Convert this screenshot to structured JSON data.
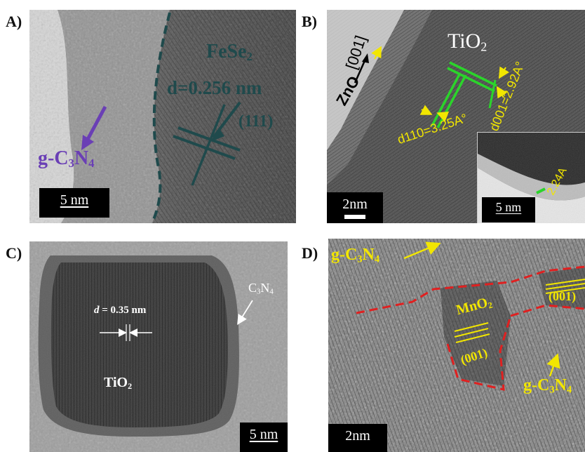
{
  "panels": {
    "a": {
      "label": "A)",
      "material": "FeSe",
      "material_sub": "2",
      "d_spacing": "d=0.256 nm",
      "plane": "(111)",
      "gcn_prefix": "g-C",
      "gcn_sub1": "3",
      "gcn_mid": "N",
      "gcn_sub2": "4",
      "scale": "5 nm"
    },
    "b": {
      "label": "B)",
      "direction": "[001]",
      "zno": "ZnO",
      "tio2": "TiO",
      "tio2_sub": "2",
      "d001": "d001=2.92A°",
      "d110": "d110=3.25A°",
      "inset_d": "2.24A",
      "scale_main": "2nm",
      "scale_inset": "5 nm"
    },
    "c": {
      "label": "C)",
      "c3n4_prefix": "C",
      "c3n4_sub1": "3",
      "c3n4_mid": "N",
      "c3n4_sub2": "4",
      "d_italic": "d",
      "d_value": " = 0.35 nm",
      "tio2": "TiO",
      "tio2_sub": "2",
      "scale": "5 nm"
    },
    "d": {
      "label": "D)",
      "gcn_top_prefix": "g-C",
      "gcn_top_sub1": "3",
      "gcn_top_mid": "N",
      "gcn_top_sub2": "4",
      "mno2": "MnO",
      "mno2_sub": "2",
      "plane_left": "(001)",
      "plane_right": "(001)",
      "gcn_bottom_prefix": "g-C",
      "gcn_bottom_sub1": "3",
      "gcn_bottom_mid": "N",
      "gcn_bottom_sub2": "4",
      "scale": "2nm"
    }
  },
  "colors": {
    "purple": "#6a3fb5",
    "teal": "#1f4a4c",
    "yellow": "#f2e600",
    "green": "#2bd42b",
    "red": "#e02020"
  }
}
